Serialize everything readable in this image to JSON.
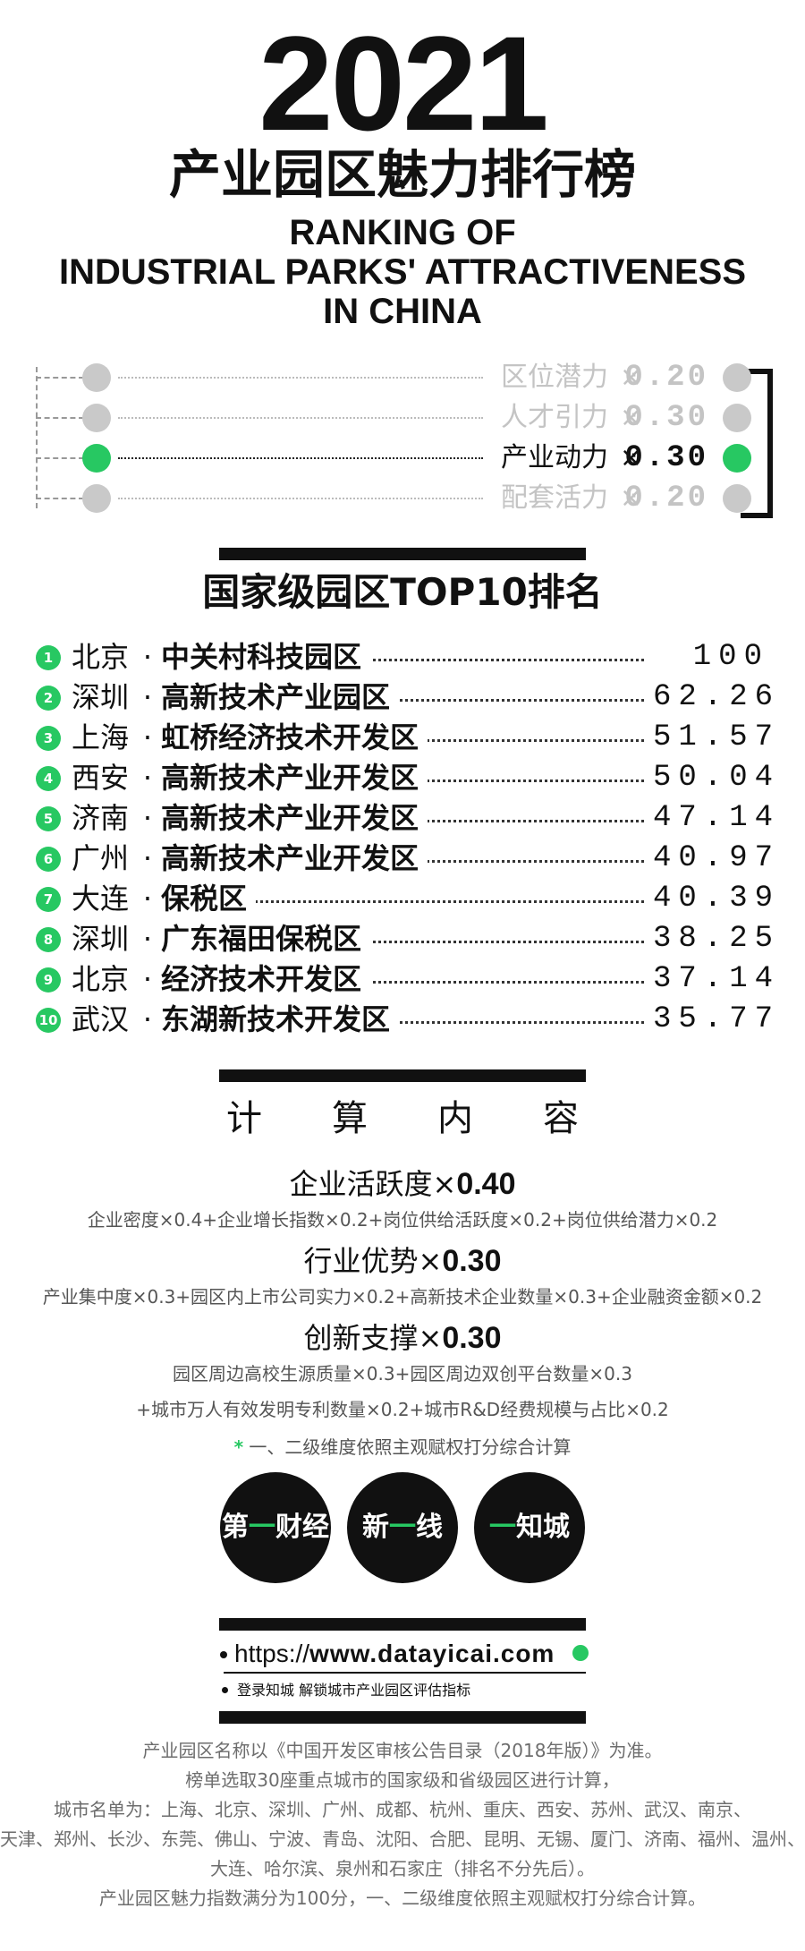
{
  "header": {
    "year": "2021",
    "title_cn": "产业园区魅力排行榜",
    "title_en_1": "RANKING OF",
    "title_en_2": "INDUSTRIAL PARKS' ATTRACTIVENESS",
    "title_en_3": "IN CHINA"
  },
  "dimensions": [
    {
      "label": "区位潜力",
      "times": "×",
      "weight": "0.20",
      "active": false
    },
    {
      "label": "人才引力",
      "times": "×",
      "weight": "0.30",
      "active": false
    },
    {
      "label": "产业动力",
      "times": "×",
      "weight": "0.30",
      "active": true
    },
    {
      "label": "配套活力",
      "times": "×",
      "weight": "0.20",
      "active": false
    }
  ],
  "ranking": {
    "title": "国家级园区TOP10排名",
    "sep": "·",
    "rows": [
      {
        "num": "1",
        "city": "北京",
        "park": "中关村科技园区",
        "score": "100"
      },
      {
        "num": "2",
        "city": "深圳",
        "park": "高新技术产业园区",
        "score": "62.26"
      },
      {
        "num": "3",
        "city": "上海",
        "park": "虹桥经济技术开发区",
        "score": "51.57"
      },
      {
        "num": "4",
        "city": "西安",
        "park": "高新技术产业开发区",
        "score": "50.04"
      },
      {
        "num": "5",
        "city": "济南",
        "park": "高新技术产业开发区",
        "score": "47.14"
      },
      {
        "num": "6",
        "city": "广州",
        "park": "高新技术产业开发区",
        "score": "40.97"
      },
      {
        "num": "7",
        "city": "大连",
        "park": "保税区",
        "score": "40.39"
      },
      {
        "num": "8",
        "city": "深圳",
        "park": "广东福田保税区",
        "score": "38.25"
      },
      {
        "num": "9",
        "city": "北京",
        "park": "经济技术开发区",
        "score": "37.14"
      },
      {
        "num": "10",
        "city": "武汉",
        "park": "东湖新技术开发区",
        "score": "35.77"
      }
    ]
  },
  "calculation": {
    "heading": "计算内容",
    "items": [
      {
        "name": "企业活跃度",
        "times": "×",
        "weight": "0.40",
        "formula": [
          "企业密度×0.4+企业增长指数×0.2+岗位供给活跃度×0.2+岗位供给潜力×0.2"
        ]
      },
      {
        "name": "行业优势",
        "times": "×",
        "weight": "0.30",
        "formula": [
          "产业集中度×0.3+园区内上市公司实力×0.2+高新技术企业数量×0.3+企业融资金额×0.2"
        ]
      },
      {
        "name": "创新支撑",
        "times": "×",
        "weight": "0.30",
        "formula": [
          "园区周边高校生源质量×0.3+园区周边双创平台数量×0.3",
          "+城市万人有效发明专利数量×0.2+城市R&D经费规模与占比×0.2"
        ]
      }
    ],
    "note_star": "*",
    "note": "一、二级维度依照主观赋权打分综合计算"
  },
  "logos": [
    {
      "main": "第",
      "accent": "一",
      "rest": "财经",
      "icon": "yicai-logo"
    },
    {
      "main": "新",
      "accent": "一",
      "rest": "线",
      "icon": "rising-lab-logo"
    },
    {
      "main": "",
      "accent": "一",
      "rest": "知城",
      "icon": "zhicheng-logo"
    }
  ],
  "link": {
    "prefix": "https://",
    "domain": "www.datayicai.com",
    "note": "登录知城 解锁城市产业园区评估指标"
  },
  "footer": [
    "产业园区名称以《中国开发区审核公告目录（2018年版）》为准。",
    "榜单选取30座重点城市的国家级和省级园区进行计算，",
    "城市名单为：上海、北京、深圳、广州、成都、杭州、重庆、西安、苏州、武汉、南京、",
    "天津、郑州、长沙、东莞、佛山、宁波、青岛、沈阳、合肥、昆明、无锡、厦门、济南、福州、温州、",
    "大连、哈尔滨、泉州和石家庄（排名不分先后）。",
    "产业园区魅力指数满分为100分，一、二级维度依照主观赋权打分综合计算。"
  ]
}
